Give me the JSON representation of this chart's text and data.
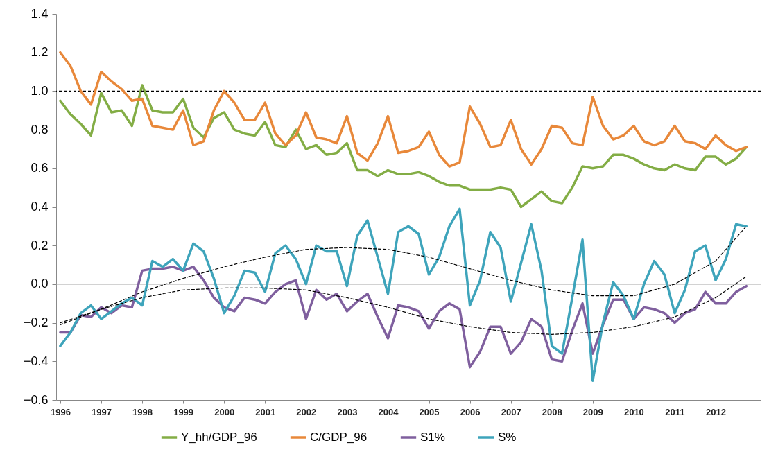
{
  "chart_data": {
    "type": "line",
    "legend": "bottom",
    "x": [
      1996,
      1996.25,
      1996.5,
      1996.75,
      1997,
      1997.25,
      1997.5,
      1997.75,
      1998,
      1998.25,
      1998.5,
      1998.75,
      1999,
      1999.25,
      1999.5,
      1999.75,
      2000,
      2000.25,
      2000.5,
      2000.75,
      2001,
      2001.25,
      2001.5,
      2001.75,
      2002,
      2002.25,
      2002.5,
      2002.75,
      2003,
      2003.25,
      2003.5,
      2003.75,
      2004,
      2004.25,
      2004.5,
      2004.75,
      2005,
      2005.25,
      2005.5,
      2005.75,
      2006,
      2006.25,
      2006.5,
      2006.75,
      2007,
      2007.25,
      2007.5,
      2007.75,
      2008,
      2008.25,
      2008.5,
      2008.75,
      2009,
      2009.25,
      2009.5,
      2009.75,
      2010,
      2010.25,
      2010.5,
      2010.75,
      2011,
      2011.25,
      2011.5,
      2011.75,
      2012,
      2012.25,
      2012.5,
      2012.75
    ],
    "xlim": [
      1995.9,
      2013.1
    ],
    "xticks": [
      1996,
      1997,
      1998,
      1999,
      2000,
      2001,
      2002,
      2003,
      2004,
      2005,
      2006,
      2007,
      2008,
      2009,
      2010,
      2011,
      2012
    ],
    "ylim": [
      -0.6,
      1.4
    ],
    "yticks": [
      -0.6,
      -0.4,
      -0.2,
      {
        "value": 0,
        "label": "0.0"
      },
      0.2,
      0.4,
      0.6,
      0.8,
      {
        "value": 1,
        "label": "1.0"
      },
      1.2,
      1.4
    ],
    "ref_lines": [
      {
        "axis": "y",
        "value": 1,
        "color": "#000000",
        "line_style": "dashed"
      },
      {
        "axis": "y",
        "value": 0,
        "color": "#a6a6a6",
        "line_style": "solid"
      }
    ],
    "series": [
      {
        "name": "Y_hh/GDP_96",
        "color": "#83ad45",
        "values": [
          0.95,
          0.88,
          0.83,
          0.77,
          0.99,
          0.89,
          0.9,
          0.82,
          1.03,
          0.9,
          0.89,
          0.89,
          0.96,
          0.81,
          0.76,
          0.86,
          0.89,
          0.8,
          0.78,
          0.77,
          0.84,
          0.72,
          0.71,
          0.8,
          0.7,
          0.72,
          0.67,
          0.68,
          0.73,
          0.59,
          0.59,
          0.56,
          0.59,
          0.57,
          0.57,
          0.58,
          0.56,
          0.53,
          0.51,
          0.51,
          0.49,
          0.49,
          0.49,
          0.5,
          0.49,
          0.4,
          0.44,
          0.48,
          0.43,
          0.42,
          0.5,
          0.61,
          0.6,
          0.61,
          0.67,
          0.67,
          0.65,
          0.62,
          0.6,
          0.59,
          0.62,
          0.6,
          0.59,
          0.66,
          0.66,
          0.62,
          0.65,
          0.71
        ]
      },
      {
        "name": "C/GDP_96",
        "color": "#e8883a",
        "values": [
          1.2,
          1.13,
          1,
          0.93,
          1.1,
          1.05,
          1.01,
          0.95,
          0.96,
          0.82,
          0.81,
          0.8,
          0.9,
          0.72,
          0.74,
          0.9,
          1,
          0.94,
          0.85,
          0.85,
          0.94,
          0.78,
          0.72,
          0.77,
          0.89,
          0.76,
          0.75,
          0.73,
          0.87,
          0.68,
          0.64,
          0.73,
          0.87,
          0.68,
          0.69,
          0.71,
          0.79,
          0.67,
          0.61,
          0.63,
          0.92,
          0.83,
          0.71,
          0.72,
          0.85,
          0.7,
          0.62,
          0.7,
          0.82,
          0.81,
          0.73,
          0.72,
          0.97,
          0.82,
          0.75,
          0.77,
          0.82,
          0.74,
          0.72,
          0.74,
          0.82,
          0.74,
          0.73,
          0.7,
          0.77,
          0.72,
          0.69,
          0.71
        ]
      },
      {
        "name": "S1%",
        "color": "#7f5f9e",
        "values": [
          -0.25,
          -0.25,
          -0.16,
          -0.17,
          -0.12,
          -0.15,
          -0.11,
          -0.12,
          0.07,
          0.08,
          0.08,
          0.09,
          0.07,
          0.09,
          0.02,
          -0.07,
          -0.12,
          -0.14,
          -0.07,
          -0.08,
          -0.1,
          -0.04,
          0,
          0.02,
          -0.18,
          -0.03,
          -0.08,
          -0.05,
          -0.14,
          -0.09,
          -0.05,
          -0.17,
          -0.28,
          -0.11,
          -0.12,
          -0.14,
          -0.23,
          -0.14,
          -0.1,
          -0.13,
          -0.43,
          -0.35,
          -0.22,
          -0.22,
          -0.36,
          -0.3,
          -0.18,
          -0.22,
          -0.39,
          -0.4,
          -0.24,
          -0.1,
          -0.36,
          -0.21,
          -0.08,
          -0.08,
          -0.18,
          -0.12,
          -0.13,
          -0.15,
          -0.2,
          -0.15,
          -0.13,
          -0.04,
          -0.1,
          -0.1,
          -0.04,
          -0.01
        ]
      },
      {
        "name": "S%",
        "color": "#3ea4bb",
        "values": [
          -0.32,
          -0.25,
          -0.15,
          -0.11,
          -0.18,
          -0.14,
          -0.1,
          -0.07,
          -0.11,
          0.12,
          0.09,
          0.13,
          0.07,
          0.21,
          0.17,
          0.03,
          -0.15,
          -0.06,
          0.07,
          0.06,
          -0.04,
          0.16,
          0.2,
          0.13,
          0,
          0.2,
          0.17,
          0.17,
          -0.01,
          0.25,
          0.33,
          0.14,
          -0.05,
          0.27,
          0.3,
          0.26,
          0.05,
          0.14,
          0.3,
          0.39,
          -0.11,
          0.02,
          0.27,
          0.19,
          -0.09,
          0.11,
          0.31,
          0.07,
          -0.32,
          -0.36,
          -0.07,
          0.23,
          -0.5,
          -0.2,
          0.01,
          -0.06,
          -0.18,
          0,
          0.12,
          0.05,
          -0.15,
          -0.03,
          0.17,
          0.2,
          0.02,
          0.13,
          0.31,
          0.3
        ]
      },
      {
        "type": "line",
        "color": "#000000",
        "line_style": "dashed",
        "x": [
          1996,
          1997,
          1998,
          1999,
          2000,
          2001,
          2002,
          2003,
          2004,
          2005,
          2006,
          2007,
          2008,
          2009,
          2010,
          2011,
          2012,
          2012.75
        ],
        "values": [
          -0.21,
          -0.13,
          -0.04,
          0.03,
          0.09,
          0.14,
          0.18,
          0.19,
          0.18,
          0.14,
          0.08,
          0.02,
          -0.03,
          -0.06,
          -0.06,
          0,
          0.12,
          0.3
        ]
      },
      {
        "type": "line",
        "color": "#000000",
        "line_style": "dashed",
        "x": [
          1996,
          1997,
          1998,
          1999,
          2000,
          2001,
          2002,
          2003,
          2004,
          2005,
          2006,
          2007,
          2008,
          2009,
          2010,
          2011,
          2012,
          2012.75
        ],
        "values": [
          -0.2,
          -0.13,
          -0.07,
          -0.03,
          -0.02,
          -0.02,
          -0.03,
          -0.07,
          -0.12,
          -0.18,
          -0.22,
          -0.25,
          -0.26,
          -0.25,
          -0.22,
          -0.17,
          -0.07,
          0.04
        ]
      }
    ]
  }
}
